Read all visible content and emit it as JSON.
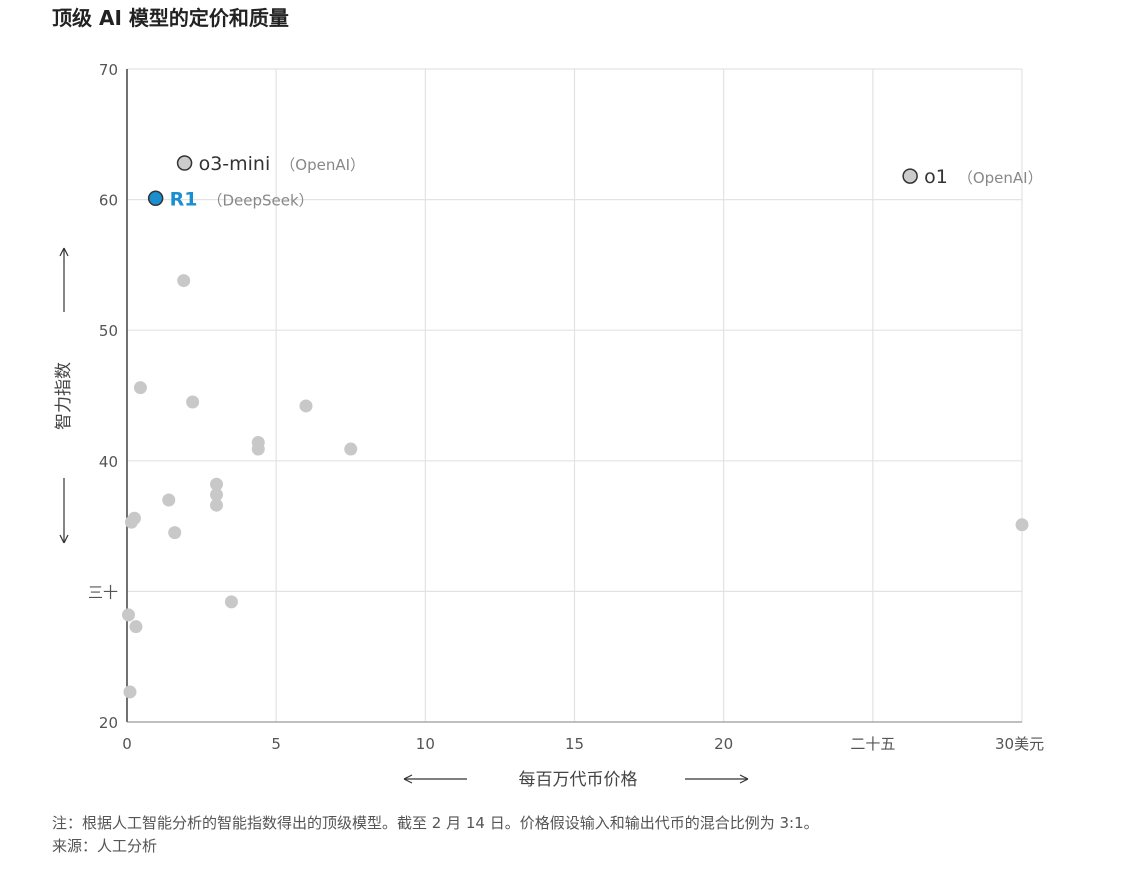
{
  "title": "顶级 AI 模型的定价和质量",
  "chart_data": {
    "type": "scatter",
    "xlabel": "每百万代币价格",
    "ylabel": "智力指数",
    "xlim": [
      0,
      30
    ],
    "ylim": [
      20,
      70
    ],
    "x_ticks": [
      {
        "value": 0,
        "label": "0"
      },
      {
        "value": 5,
        "label": "5"
      },
      {
        "value": 10,
        "label": "10"
      },
      {
        "value": 15,
        "label": "15"
      },
      {
        "value": 20,
        "label": "20"
      },
      {
        "value": 25,
        "label": "二十五"
      },
      {
        "value": 30,
        "label": "30美元"
      }
    ],
    "y_ticks": [
      {
        "value": 20,
        "label": "20"
      },
      {
        "value": 30,
        "label": "三十"
      },
      {
        "value": 40,
        "label": "40"
      },
      {
        "value": 50,
        "label": "50"
      },
      {
        "value": 60,
        "label": "60"
      },
      {
        "value": 70,
        "label": "70"
      }
    ],
    "grid": true,
    "highlighted": [
      {
        "name": "o3-mini",
        "org": "（OpenAI）",
        "x": 1.93,
        "y": 62.8,
        "color": "#cccccc",
        "label_color": "#333333"
      },
      {
        "name": "R1",
        "org": "（DeepSeek）",
        "x": 0.96,
        "y": 60.1,
        "color": "#1a8fcf",
        "label_color": "#1a8fcf"
      },
      {
        "name": "o1",
        "org": "（OpenAI）",
        "x": 26.25,
        "y": 61.8,
        "color": "#cccccc",
        "label_color": "#333333"
      }
    ],
    "points": [
      {
        "x": 1.9,
        "y": 53.8
      },
      {
        "x": 0.45,
        "y": 45.6
      },
      {
        "x": 2.2,
        "y": 44.5
      },
      {
        "x": 6.0,
        "y": 44.2
      },
      {
        "x": 4.4,
        "y": 41.4
      },
      {
        "x": 4.4,
        "y": 40.9
      },
      {
        "x": 7.5,
        "y": 40.9
      },
      {
        "x": 3.0,
        "y": 38.2
      },
      {
        "x": 3.0,
        "y": 37.4
      },
      {
        "x": 1.4,
        "y": 37.0
      },
      {
        "x": 3.0,
        "y": 36.6
      },
      {
        "x": 0.25,
        "y": 35.6
      },
      {
        "x": 0.15,
        "y": 35.3
      },
      {
        "x": 1.6,
        "y": 34.5
      },
      {
        "x": 30.0,
        "y": 35.1
      },
      {
        "x": 3.5,
        "y": 29.2
      },
      {
        "x": 0.05,
        "y": 28.2
      },
      {
        "x": 0.3,
        "y": 27.3
      },
      {
        "x": 0.1,
        "y": 22.3
      }
    ],
    "point_color": "#c8c8c8"
  },
  "footnote": {
    "note": "注：根据人工智能分析的智能指数得出的顶级模型。截至 2 月 14 日。价格假设输入和输出代币的混合比例为 3:1。",
    "source": "来源：人工分析"
  }
}
